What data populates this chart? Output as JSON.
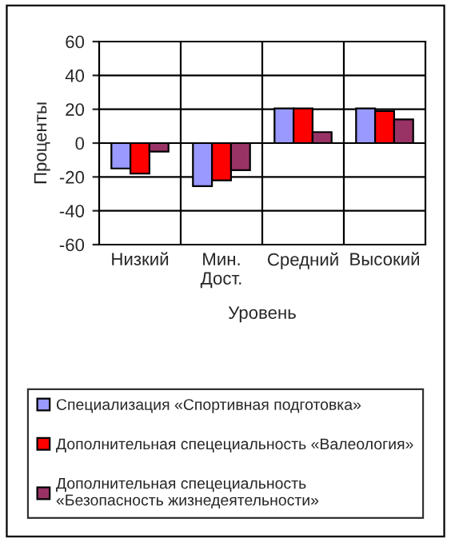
{
  "chart_data": {
    "type": "bar",
    "xlabel": "Уровень",
    "ylabel": "Проценты",
    "categories": [
      "Низкий",
      "Мин.\nДост.",
      "Средний",
      "Высокий"
    ],
    "series": [
      {
        "name": "Специализация «Спортивная подготовка»",
        "color": "#9999ff",
        "values": [
          -15,
          -25.5,
          20.5,
          20.5
        ]
      },
      {
        "name": "Дополнительная спецециальность «Валеология»",
        "color": "#ff0000",
        "values": [
          -18,
          -22,
          20.5,
          19
        ]
      },
      {
        "name": "Дополнительная спецециальность\n«Безопасность жизнедеятельности»",
        "color": "#993366",
        "values": [
          -5,
          -16,
          6.5,
          14
        ]
      }
    ],
    "ylim": [
      -60,
      60
    ],
    "yticks": [
      -60,
      -40,
      -20,
      0,
      20,
      40,
      60
    ],
    "grid": true,
    "legend": "bottom"
  }
}
